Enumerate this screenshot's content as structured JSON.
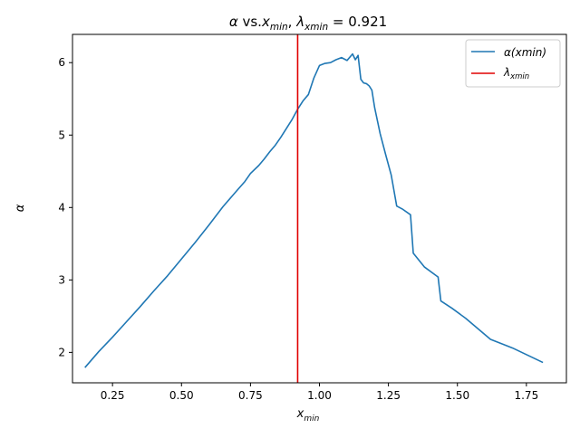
{
  "chart_data": {
    "type": "line",
    "title": "α vs.x_min, λ_xmin = 0.921",
    "title_parts": {
      "alpha": "α",
      "vs": " vs.",
      "x": "x",
      "x_sub": "min",
      "comma": ", ",
      "lambda": "λ",
      "lambda_sub": "xmin",
      "eq": " = 0.921"
    },
    "xlabel": {
      "main": "x",
      "sub": "min"
    },
    "ylabel": "α",
    "xlim": [
      0.105,
      1.895
    ],
    "ylim": [
      1.58,
      6.39
    ],
    "xticks": [
      0.25,
      0.5,
      0.75,
      1.0,
      1.25,
      1.5,
      1.75
    ],
    "xtick_labels": [
      "0.25",
      "0.50",
      "0.75",
      "1.00",
      "1.25",
      "1.50",
      "1.75"
    ],
    "yticks": [
      2,
      3,
      4,
      5,
      6
    ],
    "ytick_labels": [
      "2",
      "3",
      "4",
      "5",
      "6"
    ],
    "grid": false,
    "legend_position": "top-right",
    "series": [
      {
        "name": "α(xmin)",
        "name_parts": {
          "main": "α(",
          "italic": "xmin",
          "close": ")"
        },
        "color": "#1f77b4",
        "x": [
          0.15,
          0.2,
          0.25,
          0.3,
          0.35,
          0.4,
          0.45,
          0.5,
          0.55,
          0.6,
          0.65,
          0.7,
          0.73,
          0.75,
          0.78,
          0.8,
          0.82,
          0.84,
          0.86,
          0.88,
          0.9,
          0.92,
          0.94,
          0.96,
          0.98,
          1.0,
          1.02,
          1.04,
          1.06,
          1.08,
          1.1,
          1.12,
          1.13,
          1.14,
          1.15,
          1.16,
          1.17,
          1.18,
          1.19,
          1.2,
          1.22,
          1.24,
          1.26,
          1.28,
          1.3,
          1.33,
          1.34,
          1.38,
          1.43,
          1.44,
          1.48,
          1.53,
          1.62,
          1.7,
          1.81
        ],
        "y": [
          1.79,
          2.01,
          2.21,
          2.42,
          2.63,
          2.85,
          3.06,
          3.29,
          3.52,
          3.76,
          4.01,
          4.23,
          4.36,
          4.47,
          4.58,
          4.67,
          4.77,
          4.86,
          4.97,
          5.09,
          5.21,
          5.35,
          5.47,
          5.56,
          5.79,
          5.96,
          5.99,
          6.0,
          6.04,
          6.07,
          6.03,
          6.12,
          6.04,
          6.1,
          5.77,
          5.72,
          5.71,
          5.68,
          5.62,
          5.38,
          5.02,
          4.73,
          4.45,
          4.02,
          3.98,
          3.9,
          3.37,
          3.18,
          3.04,
          2.71,
          2.61,
          2.47,
          2.18,
          2.06,
          1.86
        ]
      }
    ],
    "vlines": [
      {
        "name": "λxmin",
        "name_parts": {
          "main": "λ",
          "sub": "xmin"
        },
        "x": 0.921,
        "color": "#e00000"
      }
    ]
  }
}
